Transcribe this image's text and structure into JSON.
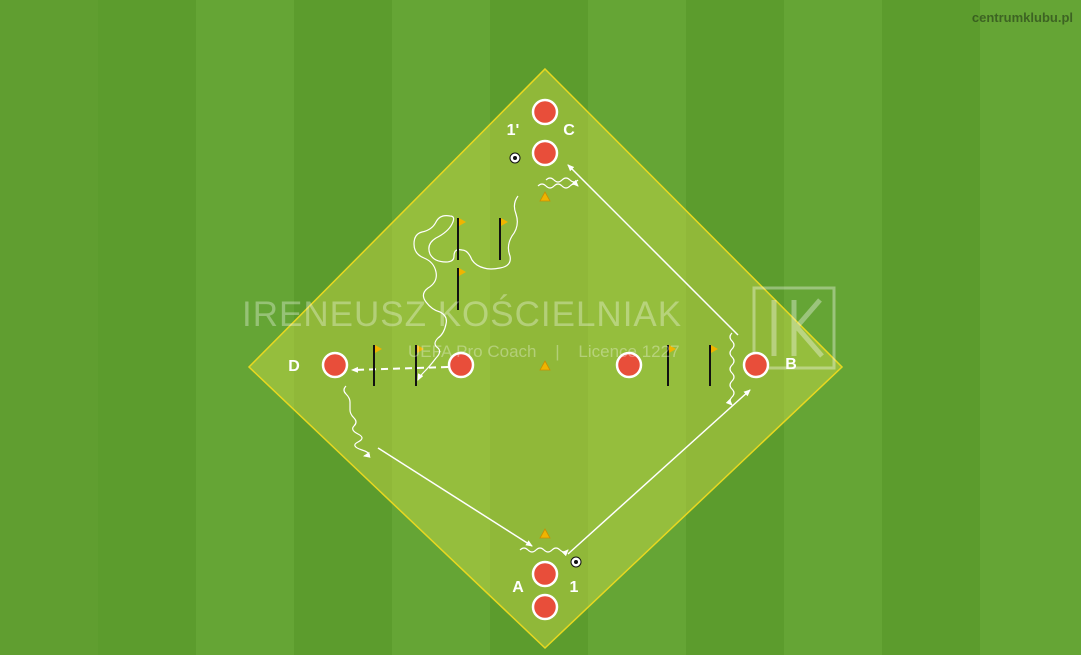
{
  "site": "centrumklubu.pl",
  "watermark": {
    "name": "IRENEUSZ KOŚCIELNIAK",
    "subtitle_a": "UEFA Pro Coach",
    "separator": "|",
    "subtitle_b": "Licence 1227",
    "logo_text": "IK"
  },
  "labels": {
    "a": "A",
    "one": "1",
    "b": "B",
    "c": "C",
    "one_prime": "1'",
    "d": "D"
  },
  "colors": {
    "grass_light": "#65a836",
    "grass_dark": "#58992b",
    "zone_fill": "#d8e04a",
    "zone_border": "#e8d820",
    "player_fill": "#e84e3a",
    "player_ring": "#ffffff",
    "cone": "#f0b400",
    "flag": "#f0b400",
    "pole": "#111111",
    "arrow": "#ffffff"
  },
  "icons": [
    "player-marker",
    "cone-icon",
    "flag-pole-icon",
    "ball-icon",
    "ik-logo"
  ]
}
